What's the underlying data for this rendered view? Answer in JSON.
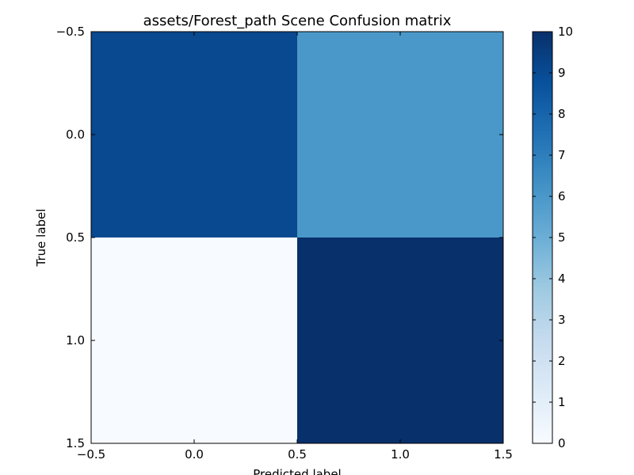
{
  "chart_data": {
    "type": "heatmap",
    "title": "assets/Forest_path Scene Confusion matrix",
    "xlabel": "Predicted label",
    "ylabel": "True label",
    "matrix": [
      [
        9,
        5
      ],
      [
        0,
        10
      ]
    ],
    "xlim": [
      -0.5,
      1.5
    ],
    "ylim": [
      1.5,
      -0.5
    ],
    "xticks": [
      "−0.5",
      "0.0",
      "0.5",
      "1.0",
      "1.5"
    ],
    "yticks": [
      "−0.5",
      "0.0",
      "0.5",
      "1.0",
      "1.5"
    ],
    "colormap": "Blues",
    "colorbar": {
      "range": [
        0,
        10
      ],
      "ticks": [
        "0",
        "1",
        "2",
        "3",
        "4",
        "5",
        "6",
        "7",
        "8",
        "9",
        "10"
      ]
    },
    "colors": {
      "cell_9": "#08498f",
      "cell_5": "#4a98c9",
      "cell_0": "#f7fbff",
      "cell_10": "#08306b"
    }
  }
}
